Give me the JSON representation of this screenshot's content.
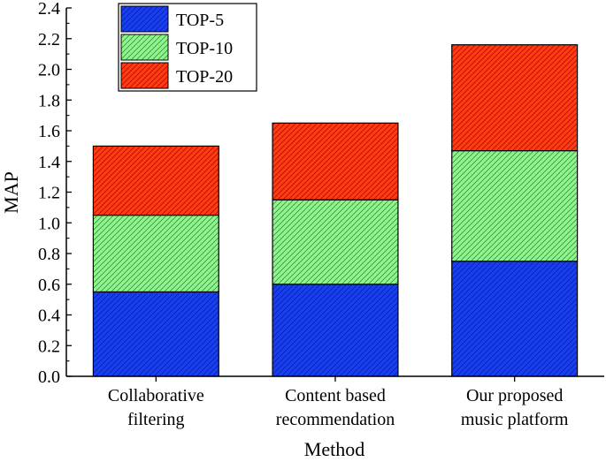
{
  "chart_data": {
    "type": "bar",
    "stacked": true,
    "categories": [
      [
        "Collaborative",
        "filtering"
      ],
      [
        "Content based",
        "recommendation"
      ],
      [
        "Our proposed",
        "music platform"
      ]
    ],
    "series": [
      {
        "name": "TOP-5",
        "values": [
          0.55,
          0.6,
          0.75
        ],
        "color": "#1a3ff0"
      },
      {
        "name": "TOP-10",
        "values": [
          0.5,
          0.55,
          0.72
        ],
        "color": "#8ef58e"
      },
      {
        "name": "TOP-20",
        "values": [
          0.45,
          0.5,
          0.69
        ],
        "color": "#ff3a14"
      }
    ],
    "ylabel": "MAP",
    "xlabel": "Method",
    "ylim": [
      0,
      2.4
    ],
    "yticks": [
      "0.0",
      "0.2",
      "0.4",
      "0.6",
      "0.8",
      "1.0",
      "1.2",
      "1.4",
      "1.6",
      "1.8",
      "2.0",
      "2.2",
      "2.4"
    ],
    "legend_position": "top-left",
    "grid": false,
    "bar_pattern": "diagonal-hatch"
  }
}
